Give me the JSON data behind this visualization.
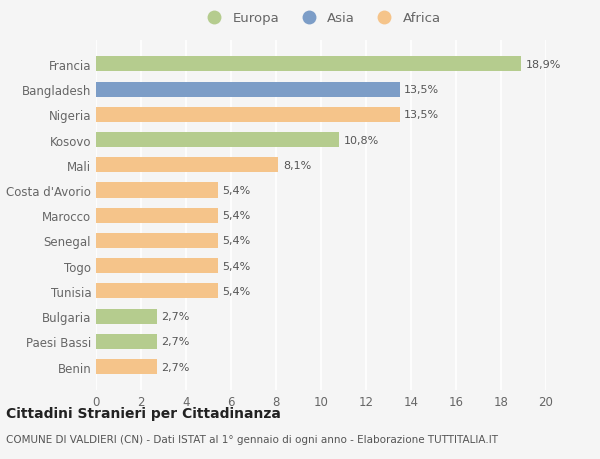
{
  "categories": [
    "Benin",
    "Paesi Bassi",
    "Bulgaria",
    "Tunisia",
    "Togo",
    "Senegal",
    "Marocco",
    "Costa d'Avorio",
    "Mali",
    "Kosovo",
    "Nigeria",
    "Bangladesh",
    "Francia"
  ],
  "values": [
    2.7,
    2.7,
    2.7,
    5.4,
    5.4,
    5.4,
    5.4,
    5.4,
    8.1,
    10.8,
    13.5,
    13.5,
    18.9
  ],
  "labels": [
    "2,7%",
    "2,7%",
    "2,7%",
    "5,4%",
    "5,4%",
    "5,4%",
    "5,4%",
    "5,4%",
    "8,1%",
    "10,8%",
    "13,5%",
    "13,5%",
    "18,9%"
  ],
  "continents": [
    "Africa",
    "Europa",
    "Europa",
    "Africa",
    "Africa",
    "Africa",
    "Africa",
    "Africa",
    "Africa",
    "Europa",
    "Africa",
    "Asia",
    "Europa"
  ],
  "colors": {
    "Europa": "#b5cc8e",
    "Asia": "#7c9dc7",
    "Africa": "#f5c48a"
  },
  "title": "Cittadini Stranieri per Cittadinanza",
  "subtitle": "COMUNE DI VALDIERI (CN) - Dati ISTAT al 1° gennaio di ogni anno - Elaborazione TUTTITALIA.IT",
  "xlim": [
    0,
    20
  ],
  "xticks": [
    0,
    2,
    4,
    6,
    8,
    10,
    12,
    14,
    16,
    18,
    20
  ],
  "background_color": "#f5f5f5",
  "grid_color": "#ffffff",
  "bar_height": 0.6,
  "legend_order": [
    "Europa",
    "Asia",
    "Africa"
  ],
  "label_fontsize": 8,
  "tick_fontsize": 8.5,
  "title_fontsize": 10,
  "subtitle_fontsize": 7.5
}
